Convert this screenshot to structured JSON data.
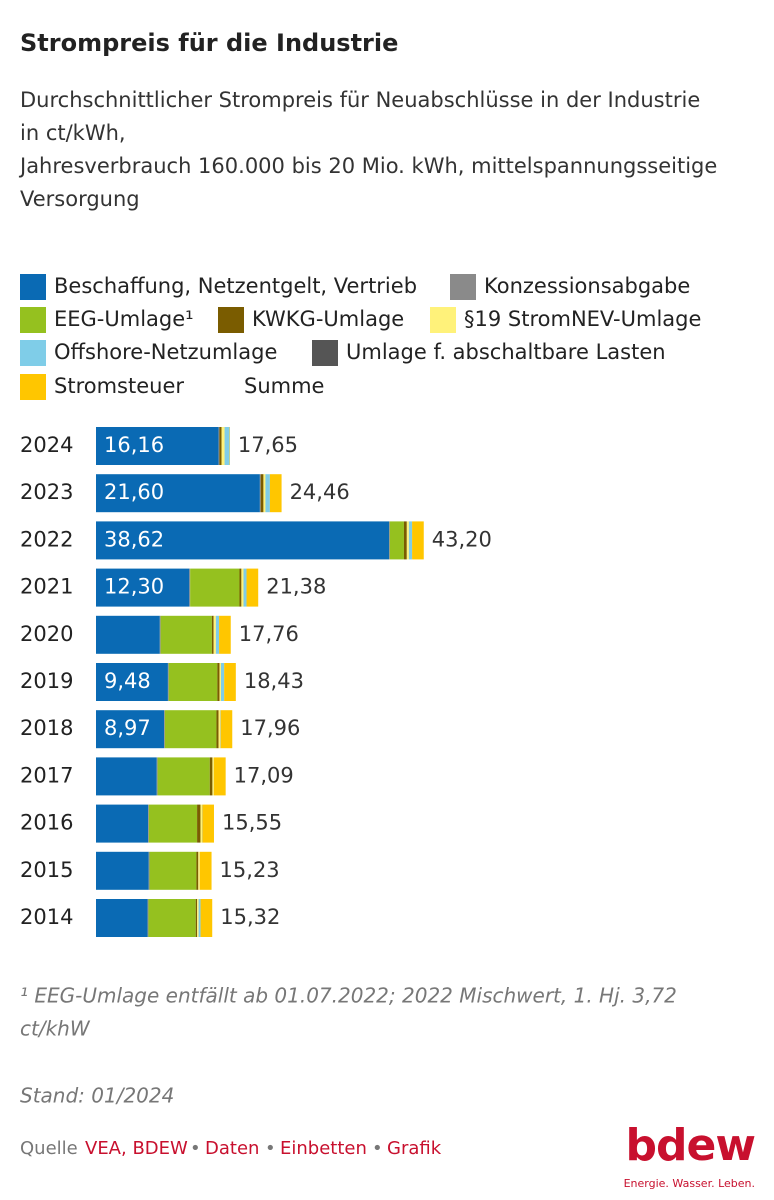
{
  "chart_data": {
    "type": "stacked-bar-horizontal",
    "title": "Strompreis für die Industrie",
    "subtitle": [
      "Durchschnittlicher Strompreis für Neuabschlüsse in der Industrie",
      "in ct/kWh,",
      "Jahresverbrauch 160.000 bis 20 Mio. kWh, mittelspannungsseitige",
      "Versorgung"
    ],
    "categories": [
      "2024",
      "2023",
      "2022",
      "2021",
      "2020",
      "2019",
      "2018",
      "2017",
      "2016",
      "2015",
      "2014"
    ],
    "series": [
      {
        "name": "Beschaffung, Netzentgelt, Vertrieb",
        "color": "#0a6ab4",
        "values": [
          16.16,
          21.6,
          38.62,
          12.3,
          8.41,
          9.48,
          8.97,
          8.01,
          6.86,
          6.95,
          6.8
        ],
        "value_labels": [
          "16,16",
          "21,60",
          "38,62",
          "12,30",
          null,
          "9,48",
          "8,97",
          null,
          null,
          null,
          null
        ]
      },
      {
        "name": "Konzessionsabgabe",
        "color": "#8a8a8a",
        "values": [
          0.11,
          0.11,
          0.11,
          0.11,
          0.11,
          0.11,
          0.11,
          0.11,
          0.11,
          0.11,
          0.11
        ]
      },
      {
        "name": "EEG-Umlage¹",
        "color": "#95c11f",
        "values": [
          0,
          0,
          1.86,
          6.5,
          6.756,
          6.405,
          6.792,
          6.88,
          6.354,
          6.17,
          6.24
        ]
      },
      {
        "name": "KWKG-Umlage",
        "color": "#7a5c00",
        "values": [
          0.275,
          0.357,
          0.378,
          0.254,
          0.226,
          0.28,
          0.28,
          0.345,
          0.445,
          0.254,
          0.178
        ]
      },
      {
        "name": "§19 StromNEV-Umlage",
        "color": "#fff27a",
        "values": [
          0.4,
          0.265,
          0.273,
          0.275,
          0.298,
          0.197,
          0.223,
          0.202,
          0.202,
          0.203,
          0.196
        ]
      },
      {
        "name": "Offshore-Netzumlage",
        "color": "#7fcde8",
        "values": [
          0.656,
          0.591,
          0.419,
          0.395,
          0.416,
          0.416,
          0.037,
          0,
          0.04,
          0,
          0.25
        ]
      },
      {
        "name": "Umlage f. abschaltbare Lasten",
        "color": "#555555",
        "values": [
          0,
          0,
          0.003,
          0.009,
          0.007,
          0.005,
          0.011,
          0.006,
          0.002,
          0.006,
          0.009
        ]
      },
      {
        "name": "Stromsteuer",
        "color": "#ffc600",
        "values": [
          0.05,
          1.537,
          1.537,
          1.537,
          1.537,
          1.537,
          1.537,
          1.537,
          1.537,
          1.537,
          1.537
        ]
      }
    ],
    "total_name": "Summe",
    "totals": [
      17.65,
      24.46,
      43.2,
      21.38,
      17.76,
      18.43,
      17.96,
      17.09,
      15.55,
      15.23,
      15.32
    ],
    "total_labels": [
      "17,65",
      "24,46",
      "43,20",
      "21,38",
      "17,76",
      "18,43",
      "17,96",
      "17,09",
      "15,55",
      "15,23",
      "15,32"
    ],
    "footnote": [
      "¹ EEG-Umlage entfällt ab 01.07.2022; 2022 Mischwert, 1. Hj. 3,72",
      "ct/khW"
    ],
    "stand": "Stand: 01/2024",
    "source": {
      "prefix": "Quelle",
      "links": [
        "VEA, BDEW",
        "Daten",
        "Einbetten",
        "Grafik"
      ]
    },
    "logo": {
      "name": "bdew",
      "tagline": "Energie. Wasser. Leben."
    }
  }
}
